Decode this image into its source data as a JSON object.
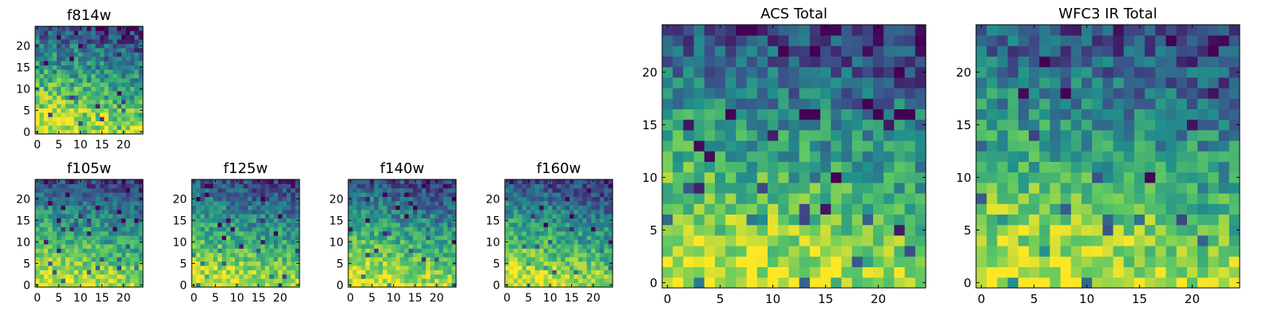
{
  "colormap": "viridis",
  "colormap_stops": [
    "#440154",
    "#3b528b",
    "#21918c",
    "#5ec962",
    "#fde725"
  ],
  "chart_data": [
    {
      "type": "heatmap",
      "title": "f814w",
      "grid_size": 25,
      "xticks": [
        "0",
        "5",
        "10",
        "15",
        "20"
      ],
      "yticks": [
        "0",
        "5",
        "10",
        "15",
        "20"
      ],
      "xlim": [
        0,
        24
      ],
      "ylim": [
        0,
        24
      ],
      "seed": 11,
      "noise": 0.22
    },
    {
      "type": "heatmap",
      "title": "f105w",
      "grid_size": 25,
      "xticks": [
        "0",
        "5",
        "10",
        "15",
        "20"
      ],
      "yticks": [
        "0",
        "5",
        "10",
        "15",
        "20"
      ],
      "xlim": [
        0,
        24
      ],
      "ylim": [
        0,
        24
      ],
      "seed": 23,
      "noise": 0.18
    },
    {
      "type": "heatmap",
      "title": "f125w",
      "grid_size": 25,
      "xticks": [
        "0",
        "5",
        "10",
        "15",
        "20"
      ],
      "yticks": [
        "0",
        "5",
        "10",
        "15",
        "20"
      ],
      "xlim": [
        0,
        24
      ],
      "ylim": [
        0,
        24
      ],
      "seed": 37,
      "noise": 0.18
    },
    {
      "type": "heatmap",
      "title": "f140w",
      "grid_size": 25,
      "xticks": [
        "0",
        "5",
        "10",
        "15",
        "20"
      ],
      "yticks": [
        "0",
        "5",
        "10",
        "15",
        "20"
      ],
      "xlim": [
        0,
        24
      ],
      "ylim": [
        0,
        24
      ],
      "seed": 41,
      "noise": 0.18
    },
    {
      "type": "heatmap",
      "title": "f160w",
      "grid_size": 25,
      "xticks": [
        "0",
        "5",
        "10",
        "15",
        "20"
      ],
      "yticks": [
        "0",
        "5",
        "10",
        "15",
        "20"
      ],
      "xlim": [
        0,
        24
      ],
      "ylim": [
        0,
        24
      ],
      "seed": 53,
      "noise": 0.18
    },
    {
      "type": "heatmap",
      "title": "ACS Total",
      "grid_size": 25,
      "xticks": [
        "0",
        "5",
        "10",
        "15",
        "20"
      ],
      "yticks": [
        "0",
        "5",
        "10",
        "15",
        "20"
      ],
      "xlim": [
        0,
        24
      ],
      "ylim": [
        0,
        24
      ],
      "seed": 67,
      "noise": 0.2
    },
    {
      "type": "heatmap",
      "title": "WFC3 IR Total",
      "grid_size": 25,
      "xticks": [
        "0",
        "5",
        "10",
        "15",
        "20"
      ],
      "yticks": [
        "0",
        "5",
        "10",
        "15",
        "20"
      ],
      "xlim": [
        0,
        24
      ],
      "ylim": [
        0,
        24
      ],
      "seed": 79,
      "noise": 0.2
    }
  ]
}
